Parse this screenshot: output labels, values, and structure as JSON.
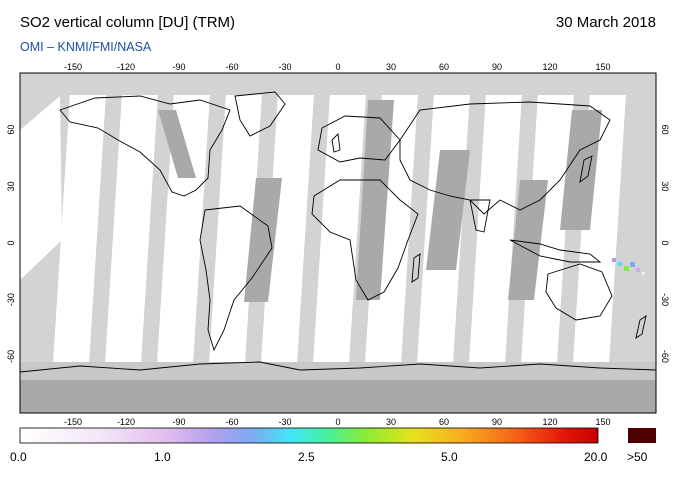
{
  "header": {
    "title": "SO2 vertical column [DU] (TRM)",
    "date": "30 March 2018",
    "credit": "OMI  –  KNMI/FMI/NASA"
  },
  "map": {
    "lon_ticks": [
      "-150",
      "-120",
      "-90",
      "-60",
      "-30",
      "0",
      "30",
      "60",
      "90",
      "120",
      "150"
    ],
    "lat_ticks": [
      "60",
      "30",
      "0",
      "-30",
      "-60"
    ]
  },
  "colorbar": {
    "labels": [
      "0.0",
      "1.0",
      "2.5",
      "5.0",
      "20.0"
    ],
    "saturation_label": ">50",
    "colors": [
      "#ffffff",
      "#f4e8f6",
      "#e8c8ee",
      "#d0a8e8",
      "#a8a0ec",
      "#7fb0f4",
      "#48e0f8",
      "#40f0b0",
      "#80ee40",
      "#d0e820",
      "#f8c020",
      "#f88020",
      "#f04010",
      "#e00000",
      "#b00000"
    ],
    "saturation_color": "#4d0000"
  }
}
